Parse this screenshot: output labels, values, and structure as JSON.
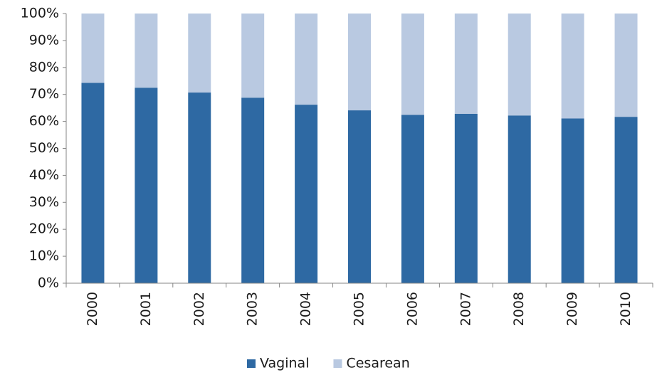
{
  "chart_data": {
    "type": "stacked-bar",
    "categories": [
      "2000",
      "2001",
      "2002",
      "2003",
      "2004",
      "2005",
      "2006",
      "2007",
      "2008",
      "2009",
      "2010"
    ],
    "series": [
      {
        "name": "Vaginal",
        "color": "#2e69a3",
        "values": [
          74.3,
          72.5,
          70.7,
          68.8,
          66.2,
          64.1,
          62.4,
          62.8,
          62.2,
          61.1,
          61.7
        ]
      },
      {
        "name": "Cesarean",
        "color": "#b9c9e1",
        "values": [
          25.7,
          27.5,
          29.3,
          31.2,
          33.8,
          35.9,
          37.6,
          37.2,
          37.8,
          38.9,
          38.3
        ]
      }
    ],
    "ylim": [
      0,
      100
    ],
    "yticks": [
      {
        "value": 0,
        "label": "0%"
      },
      {
        "value": 10,
        "label": "10%"
      },
      {
        "value": 20,
        "label": "20%"
      },
      {
        "value": 30,
        "label": "30%"
      },
      {
        "value": 40,
        "label": "40%"
      },
      {
        "value": 50,
        "label": "50%"
      },
      {
        "value": 60,
        "label": "60%"
      },
      {
        "value": 70,
        "label": "70%"
      },
      {
        "value": 80,
        "label": "80%"
      },
      {
        "value": 90,
        "label": "90%"
      },
      {
        "value": 100,
        "label": "100%"
      }
    ],
    "grid": false,
    "legend": "bottom"
  }
}
